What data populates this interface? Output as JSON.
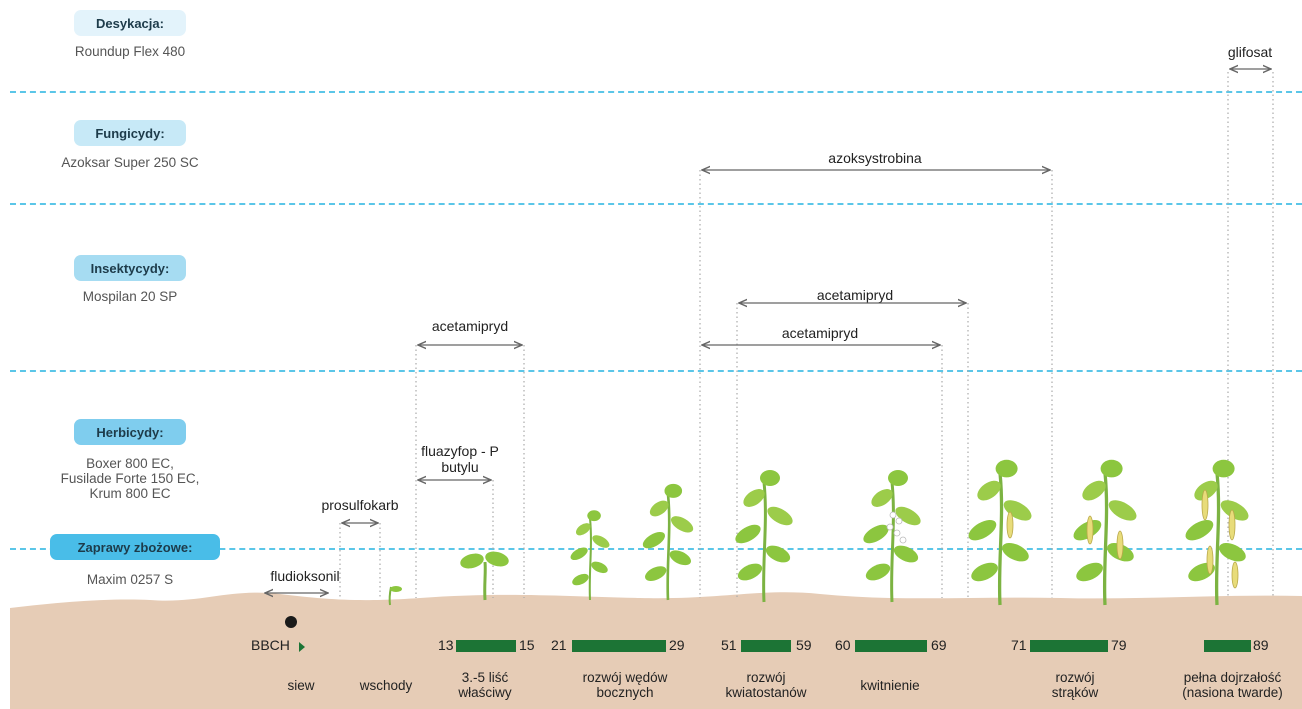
{
  "categories": [
    {
      "label": "Desykacja:",
      "product": "Roundup Flex 480",
      "color": "#e3f3fb"
    },
    {
      "label": "Fungicydy:",
      "product": "Azoksar Super 250 SC",
      "color": "#c7e9f7"
    },
    {
      "label": "Insektycydy:",
      "product": "Mospilan 20 SP",
      "color": "#a6dcf2"
    },
    {
      "label": "Herbicydy:",
      "product_lines": [
        "Boxer 800 EC,",
        "Fusilade Forte 150 EC,",
        "Krum 800 EC"
      ],
      "color": "#7fcdee"
    },
    {
      "label": "Zaprawy zbożowe:",
      "product": "Maxim 0257 S",
      "color": "#49bde8"
    }
  ],
  "ranges": [
    {
      "label": "glifosat"
    },
    {
      "label": "azoksystrobina"
    },
    {
      "label": "acetamipryd"
    },
    {
      "label": "acetamipryd"
    },
    {
      "label": "acetamipryd"
    },
    {
      "label": "fluazyfop - P butylu",
      "lines": [
        "fluazyfop - P",
        "butylu"
      ]
    },
    {
      "label": "prosulfokarb"
    },
    {
      "label": "fludioksonil"
    }
  ],
  "bbch": {
    "label": "BBCH",
    "ranges": [
      {
        "start": "13",
        "end": "15"
      },
      {
        "start": "21",
        "end": "29"
      },
      {
        "start": "51",
        "end": "59"
      },
      {
        "start": "60",
        "end": "69"
      },
      {
        "start": "71",
        "end": "79"
      },
      {
        "start": "",
        "end": "89"
      }
    ]
  },
  "stages": [
    {
      "lines": [
        "siew"
      ]
    },
    {
      "lines": [
        "wschody"
      ]
    },
    {
      "lines": [
        "3.-5 liść",
        "właściwy"
      ]
    },
    {
      "lines": [
        "rozwój wędów",
        "bocznych"
      ]
    },
    {
      "lines": [
        "rozwój",
        "kwiatostanów"
      ]
    },
    {
      "lines": [
        "kwitnienie"
      ]
    },
    {
      "lines": [
        "rozwój",
        "strąków"
      ]
    },
    {
      "lines": [
        "pełna dojrzałość",
        "(nasiona twarde)"
      ]
    }
  ],
  "colors": {
    "separator": "#5bc6e8",
    "bbch_bar": "#1c7435",
    "ground": "#e6ccb6",
    "leaf": "#8cc63f",
    "pod": "#e8dc7a"
  }
}
